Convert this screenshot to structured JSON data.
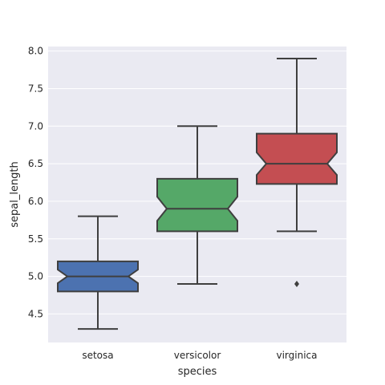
{
  "chart_data": {
    "type": "box",
    "notched": true,
    "title": "",
    "xlabel": "species",
    "ylabel": "sepal_length",
    "categories": [
      "setosa",
      "versicolor",
      "virginica"
    ],
    "ylim": [
      4.12,
      8.06
    ],
    "yticks": [
      4.5,
      5.0,
      5.5,
      6.0,
      6.5,
      7.0,
      7.5,
      8.0
    ],
    "ytick_labels": [
      "4.5",
      "5.0",
      "5.5",
      "6.0",
      "6.5",
      "7.0",
      "7.5",
      "8.0"
    ],
    "grid": true,
    "background": "#eaeaf2",
    "line_color": "#3f3f3f",
    "boxes": [
      {
        "category": "setosa",
        "whisker_low": 4.3,
        "q1": 4.8,
        "median": 5.0,
        "q3": 5.2,
        "whisker_high": 5.8,
        "notch_low": 4.91,
        "notch_high": 5.09,
        "outliers": [],
        "color": "#4c72b0"
      },
      {
        "category": "versicolor",
        "whisker_low": 4.9,
        "q1": 5.6,
        "median": 5.9,
        "q3": 6.3,
        "whisker_high": 7.0,
        "notch_low": 5.74,
        "notch_high": 6.06,
        "outliers": [],
        "color": "#55a868"
      },
      {
        "category": "virginica",
        "whisker_low": 5.6,
        "q1": 6.23,
        "median": 6.5,
        "q3": 6.9,
        "whisker_high": 7.9,
        "notch_low": 6.35,
        "notch_high": 6.65,
        "outliers": [
          4.9
        ],
        "color": "#c44e52"
      }
    ]
  }
}
